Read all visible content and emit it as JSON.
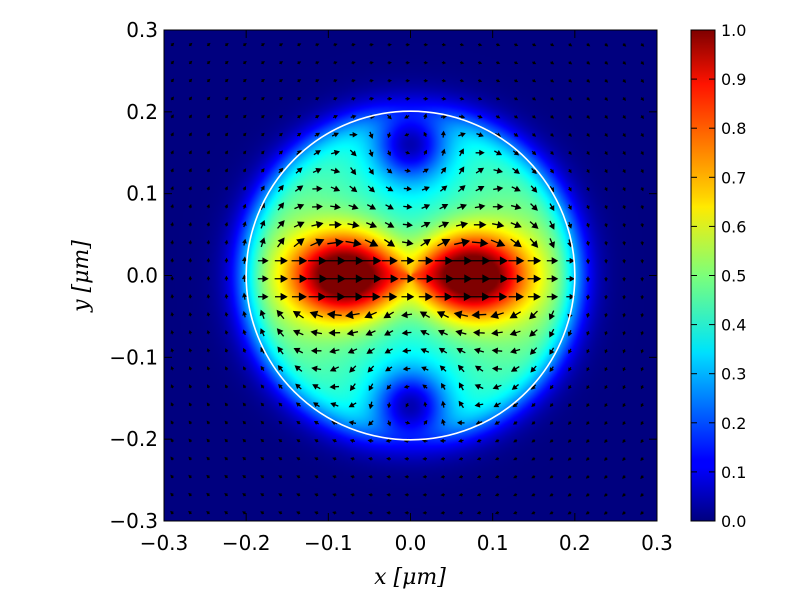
{
  "chart_data": {
    "type": "heatmap",
    "title": "",
    "xlabel": "x [μm]",
    "ylabel": "y [μm]",
    "xlim": [
      -0.3,
      0.3
    ],
    "ylim": [
      -0.3,
      0.3
    ],
    "x_ticks": [
      "−0.3",
      "−0.2",
      "−0.1",
      "0.0",
      "0.1",
      "0.2",
      "0.3"
    ],
    "y_ticks": [
      "−0.3",
      "−0.2",
      "−0.1",
      "0.0",
      "0.1",
      "0.2",
      "0.3"
    ],
    "colorbar": {
      "range": [
        0.0,
        1.0
      ],
      "colormap": "jet",
      "ticks": [
        "0.0",
        "0.1",
        "0.2",
        "0.3",
        "0.4",
        "0.5",
        "0.6",
        "0.7",
        "0.8",
        "0.9",
        "1.0"
      ]
    },
    "field_maxima": [
      {
        "x": -0.08,
        "y": 0.0,
        "value": 1.0
      },
      {
        "x": 0.075,
        "y": 0.0,
        "value": 1.0
      }
    ],
    "field_minima_inside": [
      {
        "x": 0.0,
        "y": 0.16,
        "value": 0.2
      },
      {
        "x": 0.0,
        "y": -0.16,
        "value": 0.2
      }
    ],
    "circle_overlay": {
      "center": [
        0.0,
        0.0
      ],
      "radius": 0.2,
      "color": "#ffffff"
    },
    "quiver": {
      "grid_min": -0.29,
      "grid_max": 0.29,
      "grid_step": 0.022,
      "color": "#000000"
    },
    "grid": false
  }
}
